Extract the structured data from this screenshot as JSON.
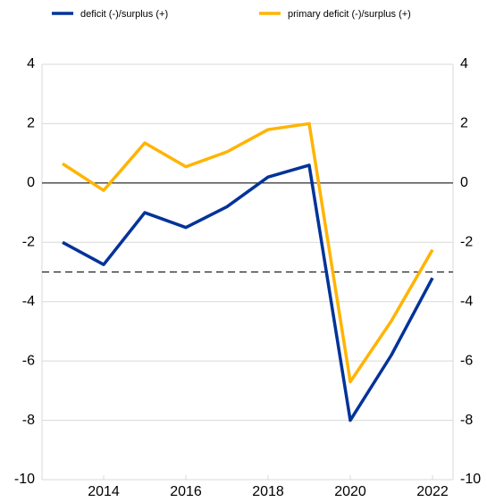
{
  "chart_data": {
    "type": "line",
    "x": [
      2013,
      2014,
      2015,
      2016,
      2017,
      2018,
      2019,
      2020,
      2021,
      2022
    ],
    "series": [
      {
        "name": "deficit (-)/surplus (+)",
        "color": "#003399",
        "values": [
          -2.0,
          -2.75,
          -1.0,
          -1.5,
          -0.8,
          0.2,
          0.6,
          -8.0,
          -5.8,
          -3.2
        ]
      },
      {
        "name": "primary deficit (-)/surplus (+)",
        "color": "#ffb400",
        "values": [
          0.65,
          -0.25,
          1.35,
          0.55,
          1.05,
          1.8,
          2.0,
          -6.7,
          -4.65,
          -2.25
        ]
      }
    ],
    "xlim": [
      2012.5,
      2022.5
    ],
    "xticks": [
      2014,
      2016,
      2018,
      2020,
      2022
    ],
    "ylim": [
      -10,
      4
    ],
    "yticks": [
      -10,
      -8,
      -6,
      -4,
      -2,
      0,
      2,
      4
    ],
    "y2lim": [
      -10,
      4
    ],
    "y2ticks": [
      -10,
      -8,
      -6,
      -4,
      -2,
      0,
      2,
      4
    ],
    "grid": true,
    "reference_lines": [
      {
        "value": 0,
        "style": "solid"
      },
      {
        "value": -3,
        "style": "dashed"
      }
    ]
  }
}
